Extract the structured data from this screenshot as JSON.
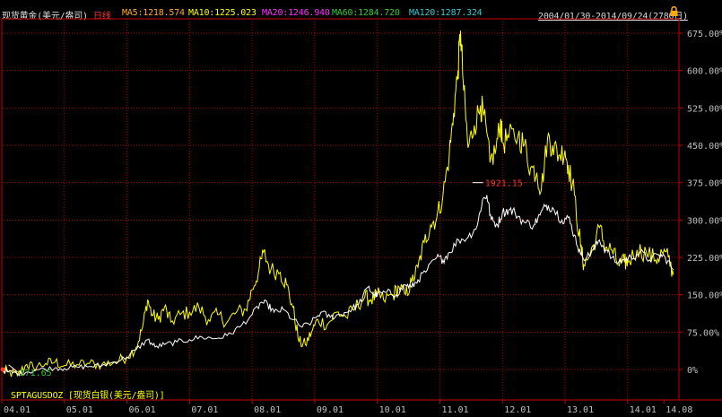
{
  "header": {
    "title": "现货黄金(美元/盎司)",
    "period": "日线",
    "ma": [
      {
        "label": "MA5:1218.574",
        "color": "#ffaa33"
      },
      {
        "label": "MA10:1225.023",
        "color": "#ffff00"
      },
      {
        "label": "MA20:1246.940",
        "color": "#ff33ff"
      },
      {
        "label": "MA60:1284.720",
        "color": "#33cc33"
      },
      {
        "label": "MA120:1287.324",
        "color": "#33cccc"
      }
    ],
    "date_range": "2004/01/30-2014/09/24(2780日)",
    "lock_icon": "lock-icon"
  },
  "overlay_label": "SPTAGUSDOZ [现货白银(美元/盎司)]",
  "colors": {
    "main": "#ffff00",
    "overlay": "#ffffff",
    "grid": "#aa0000",
    "text": "#c0c0c0"
  },
  "chart_data": {
    "type": "line",
    "y_unit": "%",
    "ylim": [
      -20,
      705
    ],
    "y_ticks": [
      "675.00%",
      "600.00%",
      "525.00%",
      "450.00%",
      "375.00%",
      "300.00%",
      "225.00%",
      "150.00%",
      "75.00%",
      "0%"
    ],
    "y_tick_values": [
      675,
      600,
      525,
      450,
      375,
      300,
      225,
      150,
      75,
      0
    ],
    "x_ticks": [
      "04.01",
      "05.01",
      "06.01",
      "07.01",
      "08.01",
      "09.01",
      "10.01",
      "11.01",
      "12.01",
      "13.01",
      "14.01",
      "14.08"
    ],
    "x_tick_values": [
      2004.0,
      2005.0,
      2006.0,
      2007.0,
      2008.0,
      2009.0,
      2010.0,
      2011.0,
      2012.0,
      2013.0,
      2014.0,
      2014.58
    ],
    "xlim": [
      2004.0,
      2014.82
    ],
    "annotations": [
      {
        "text": "1921.15",
        "x": 2011.72,
        "y": 375,
        "color": "#ff3333"
      },
      {
        "text": "371.65",
        "x": 2004.28,
        "y": -5,
        "color": "#33cc33"
      }
    ],
    "series": [
      {
        "name": "SPTAGUSDOZ [现货白银(美元/盎司)]",
        "color": "#ffff00",
        "points": [
          [
            2004.0,
            0
          ],
          [
            2004.1,
            -5
          ],
          [
            2004.25,
            -12
          ],
          [
            2004.4,
            10
          ],
          [
            2004.5,
            5
          ],
          [
            2004.7,
            12
          ],
          [
            2004.85,
            15
          ],
          [
            2005.0,
            8
          ],
          [
            2005.2,
            10
          ],
          [
            2005.4,
            12
          ],
          [
            2005.6,
            10
          ],
          [
            2005.8,
            15
          ],
          [
            2006.0,
            25
          ],
          [
            2006.15,
            45
          ],
          [
            2006.25,
            85
          ],
          [
            2006.33,
            140
          ],
          [
            2006.4,
            110
          ],
          [
            2006.5,
            100
          ],
          [
            2006.6,
            125
          ],
          [
            2006.7,
            95
          ],
          [
            2006.85,
            110
          ],
          [
            2007.0,
            115
          ],
          [
            2007.15,
            125
          ],
          [
            2007.3,
            100
          ],
          [
            2007.45,
            110
          ],
          [
            2007.6,
            95
          ],
          [
            2007.75,
            115
          ],
          [
            2007.9,
            120
          ],
          [
            2008.0,
            160
          ],
          [
            2008.1,
            195
          ],
          [
            2008.18,
            235
          ],
          [
            2008.3,
            200
          ],
          [
            2008.45,
            195
          ],
          [
            2008.55,
            170
          ],
          [
            2008.65,
            125
          ],
          [
            2008.75,
            55
          ],
          [
            2008.85,
            50
          ],
          [
            2008.95,
            75
          ],
          [
            2009.05,
            100
          ],
          [
            2009.2,
            90
          ],
          [
            2009.35,
            115
          ],
          [
            2009.5,
            105
          ],
          [
            2009.65,
            125
          ],
          [
            2009.8,
            145
          ],
          [
            2009.9,
            140
          ],
          [
            2010.0,
            150
          ],
          [
            2010.1,
            140
          ],
          [
            2010.25,
            150
          ],
          [
            2010.35,
            165
          ],
          [
            2010.45,
            150
          ],
          [
            2010.55,
            175
          ],
          [
            2010.65,
            205
          ],
          [
            2010.75,
            255
          ],
          [
            2010.85,
            290
          ],
          [
            2010.95,
            305
          ],
          [
            2011.05,
            350
          ],
          [
            2011.15,
            430
          ],
          [
            2011.22,
            515
          ],
          [
            2011.29,
            600
          ],
          [
            2011.33,
            680
          ],
          [
            2011.38,
            560
          ],
          [
            2011.45,
            445
          ],
          [
            2011.55,
            490
          ],
          [
            2011.65,
            530
          ],
          [
            2011.7,
            510
          ],
          [
            2011.8,
            415
          ],
          [
            2011.9,
            445
          ],
          [
            2011.97,
            500
          ],
          [
            2012.0,
            455
          ],
          [
            2012.1,
            465
          ],
          [
            2012.25,
            470
          ],
          [
            2012.35,
            450
          ],
          [
            2012.45,
            405
          ],
          [
            2012.55,
            395
          ],
          [
            2012.62,
            360
          ],
          [
            2012.72,
            465
          ],
          [
            2012.8,
            450
          ],
          [
            2012.9,
            430
          ],
          [
            2013.0,
            440
          ],
          [
            2013.05,
            410
          ],
          [
            2013.15,
            350
          ],
          [
            2013.25,
            245
          ],
          [
            2013.3,
            210
          ],
          [
            2013.4,
            230
          ],
          [
            2013.55,
            285
          ],
          [
            2013.65,
            245
          ],
          [
            2013.75,
            240
          ],
          [
            2013.85,
            210
          ],
          [
            2013.95,
            215
          ],
          [
            2014.0,
            215
          ],
          [
            2014.15,
            240
          ],
          [
            2014.3,
            235
          ],
          [
            2014.45,
            220
          ],
          [
            2014.55,
            235
          ],
          [
            2014.65,
            225
          ],
          [
            2014.73,
            190
          ]
        ]
      },
      {
        "name": "现货黄金(美元/盎司)",
        "color": "#ffffff",
        "points": [
          [
            2004.0,
            0
          ],
          [
            2004.1,
            -5
          ],
          [
            2004.25,
            -8
          ],
          [
            2004.4,
            -5
          ],
          [
            2004.6,
            0
          ],
          [
            2004.85,
            3
          ],
          [
            2005.0,
            2
          ],
          [
            2005.2,
            5
          ],
          [
            2005.4,
            6
          ],
          [
            2005.6,
            8
          ],
          [
            2005.8,
            15
          ],
          [
            2006.0,
            25
          ],
          [
            2006.15,
            40
          ],
          [
            2006.33,
            60
          ],
          [
            2006.45,
            45
          ],
          [
            2006.6,
            50
          ],
          [
            2006.8,
            55
          ],
          [
            2007.0,
            60
          ],
          [
            2007.2,
            65
          ],
          [
            2007.4,
            62
          ],
          [
            2007.6,
            68
          ],
          [
            2007.8,
            85
          ],
          [
            2008.0,
            110
          ],
          [
            2008.15,
            135
          ],
          [
            2008.25,
            130
          ],
          [
            2008.35,
            115
          ],
          [
            2008.5,
            120
          ],
          [
            2008.65,
            100
          ],
          [
            2008.8,
            85
          ],
          [
            2008.95,
            95
          ],
          [
            2009.1,
            115
          ],
          [
            2009.25,
            105
          ],
          [
            2009.4,
            110
          ],
          [
            2009.55,
            118
          ],
          [
            2009.7,
            130
          ],
          [
            2009.85,
            165
          ],
          [
            2009.95,
            150
          ],
          [
            2010.0,
            150
          ],
          [
            2010.15,
            155
          ],
          [
            2010.3,
            150
          ],
          [
            2010.45,
            170
          ],
          [
            2010.55,
            165
          ],
          [
            2010.65,
            180
          ],
          [
            2010.8,
            200
          ],
          [
            2010.95,
            225
          ],
          [
            2011.05,
            220
          ],
          [
            2011.15,
            235
          ],
          [
            2011.3,
            260
          ],
          [
            2011.45,
            265
          ],
          [
            2011.6,
            290
          ],
          [
            2011.68,
            340
          ],
          [
            2011.75,
            350
          ],
          [
            2011.82,
            300
          ],
          [
            2011.92,
            290
          ],
          [
            2012.0,
            315
          ],
          [
            2012.1,
            320
          ],
          [
            2012.2,
            315
          ],
          [
            2012.35,
            295
          ],
          [
            2012.5,
            290
          ],
          [
            2012.6,
            310
          ],
          [
            2012.7,
            330
          ],
          [
            2012.8,
            325
          ],
          [
            2012.95,
            300
          ],
          [
            2013.05,
            305
          ],
          [
            2013.15,
            270
          ],
          [
            2013.25,
            230
          ],
          [
            2013.35,
            225
          ],
          [
            2013.45,
            240
          ],
          [
            2013.55,
            260
          ],
          [
            2013.65,
            240
          ],
          [
            2013.8,
            215
          ],
          [
            2013.95,
            220
          ],
          [
            2014.05,
            225
          ],
          [
            2014.2,
            235
          ],
          [
            2014.35,
            220
          ],
          [
            2014.5,
            230
          ],
          [
            2014.6,
            225
          ],
          [
            2014.73,
            200
          ]
        ]
      }
    ]
  }
}
